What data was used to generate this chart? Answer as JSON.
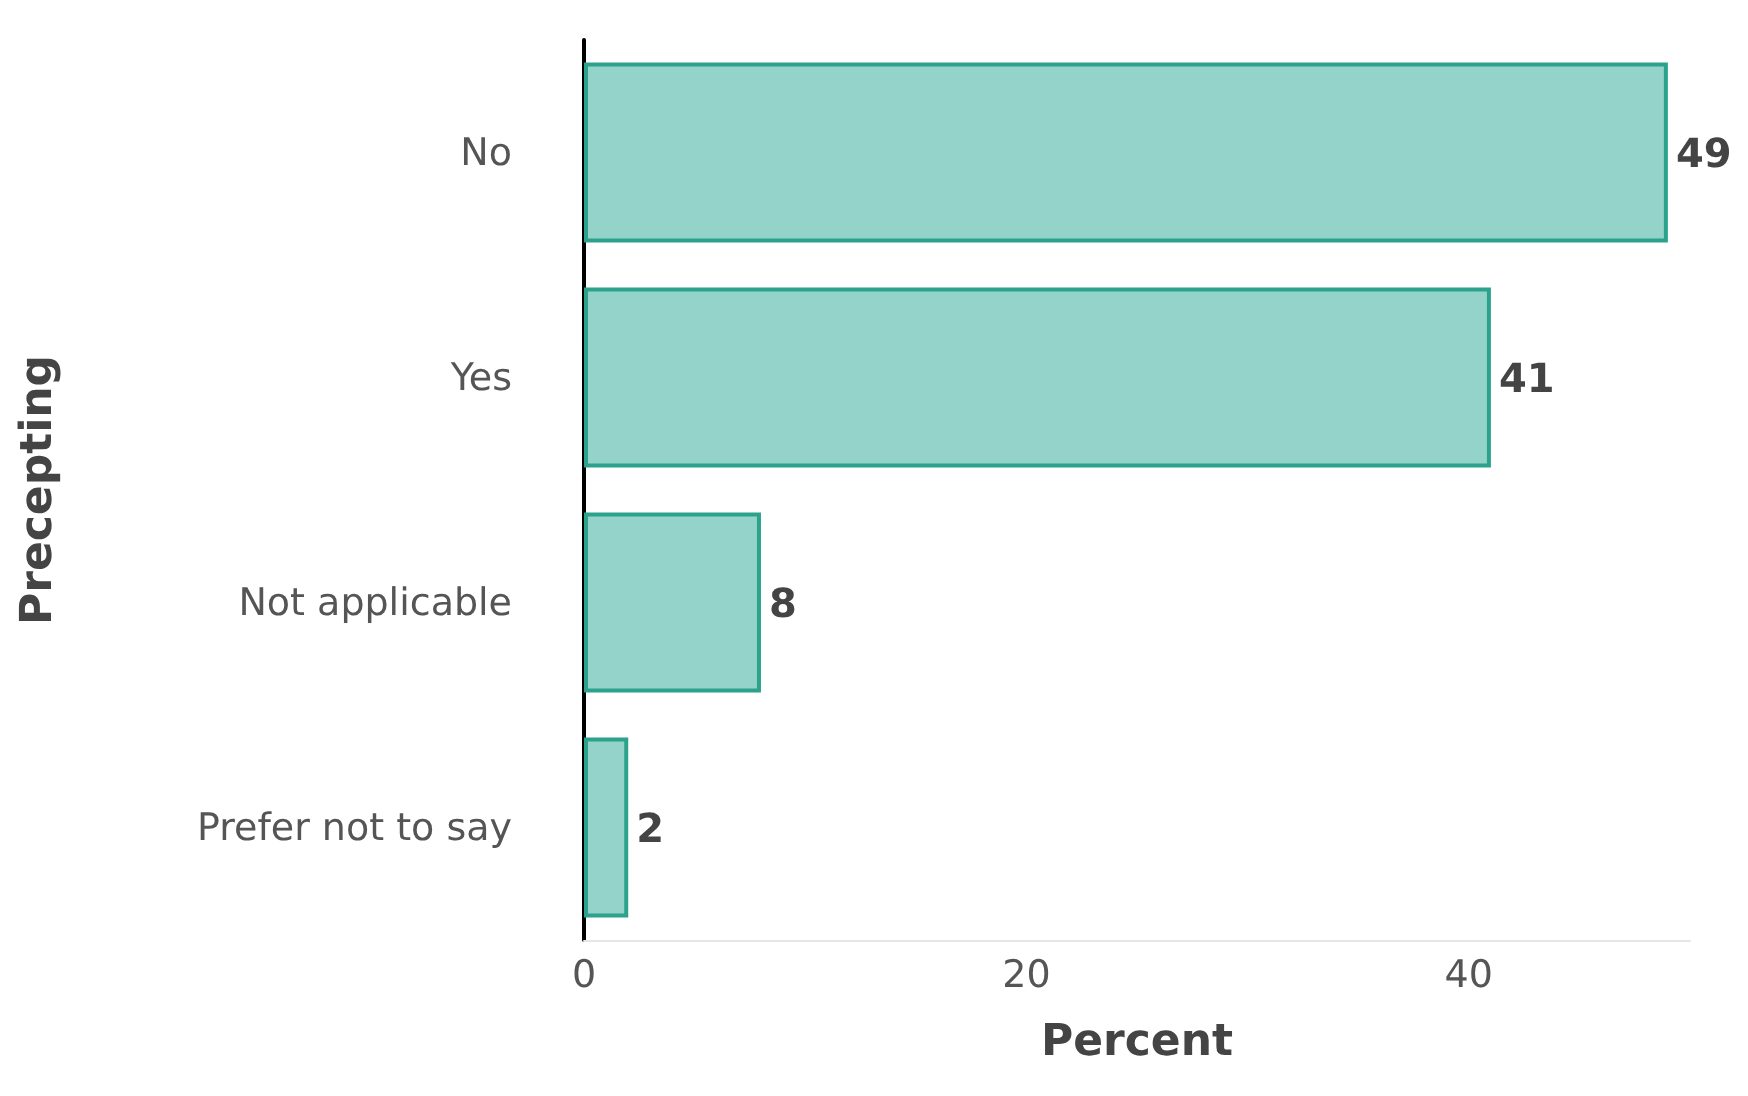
{
  "chart_data": {
    "type": "bar",
    "orientation": "horizontal",
    "xlabel": "Percent",
    "ylabel": "Precepting",
    "categories": [
      "No",
      "Yes",
      "Not applicable",
      "Prefer not to say"
    ],
    "values": [
      49,
      41,
      8,
      2
    ],
    "color": "#94d3c9",
    "xlim": [
      0,
      50
    ],
    "xticks": [
      0,
      20,
      40
    ],
    "grid": false,
    "data_labels": true
  }
}
